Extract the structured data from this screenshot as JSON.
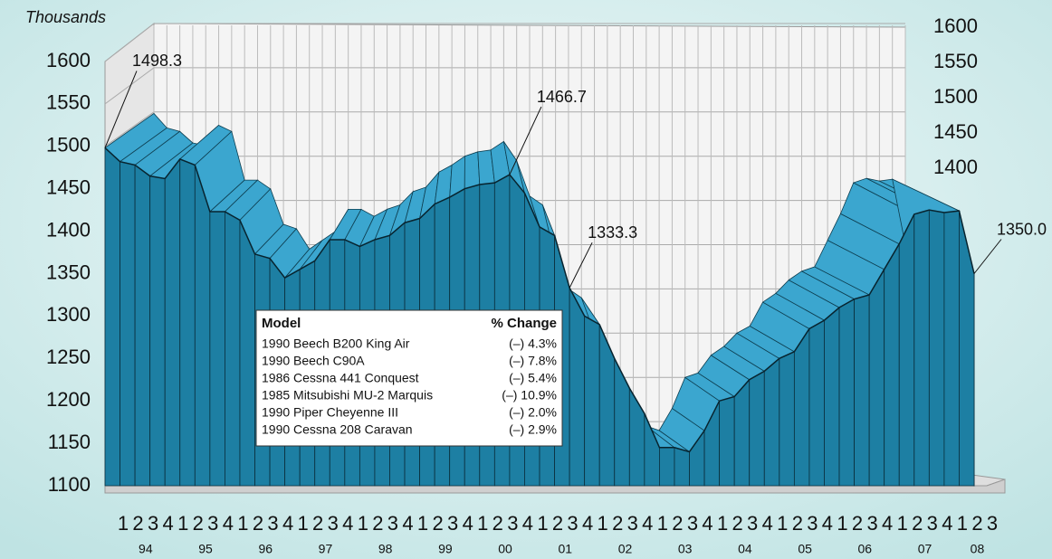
{
  "chart_data": {
    "type": "area3d",
    "y_label": "Thousands",
    "categories": [
      "1",
      "2",
      "3",
      "4",
      "1",
      "2",
      "3",
      "4",
      "1",
      "2",
      "3",
      "4",
      "1",
      "2",
      "3",
      "4",
      "1",
      "2",
      "3",
      "4",
      "1",
      "2",
      "3",
      "4",
      "1",
      "2",
      "3",
      "4",
      "1",
      "2",
      "3",
      "4",
      "1",
      "2",
      "3",
      "4",
      "1",
      "2",
      "3",
      "4",
      "1",
      "2",
      "3",
      "4",
      "1",
      "2",
      "3",
      "4",
      "1",
      "2",
      "3",
      "4",
      "1",
      "2",
      "3",
      "4",
      "1",
      "2",
      "3"
    ],
    "groups": [
      "94",
      "95",
      "96",
      "97",
      "98",
      "99",
      "00",
      "01",
      "02",
      "03",
      "04",
      "05",
      "06",
      "07",
      "08"
    ],
    "values": [
      1498.3,
      1482,
      1478,
      1465,
      1462,
      1485,
      1478,
      1423,
      1423,
      1413,
      1373,
      1368,
      1345,
      1355,
      1365,
      1390,
      1390,
      1382,
      1390,
      1395,
      1410,
      1415,
      1432,
      1440,
      1450,
      1455,
      1457,
      1466.7,
      1445,
      1405,
      1395,
      1333.3,
      1300,
      1290,
      1250,
      1215,
      1185,
      1145,
      1145,
      1140,
      1165,
      1200,
      1205,
      1225,
      1235,
      1250,
      1258,
      1285,
      1295,
      1310,
      1320,
      1325,
      1355,
      1385,
      1420,
      1425,
      1422,
      1424,
      1350
    ],
    "value_labels": [
      "1498.3",
      null,
      null,
      null,
      null,
      null,
      null,
      null,
      null,
      null,
      null,
      null,
      null,
      null,
      null,
      null,
      null,
      null,
      null,
      null,
      null,
      null,
      null,
      null,
      null,
      null,
      null,
      "1466.7",
      null,
      null,
      null,
      "1333.3",
      null,
      null,
      null,
      null,
      null,
      null,
      null,
      null,
      null,
      null,
      null,
      null,
      null,
      null,
      null,
      null,
      null,
      null,
      null,
      null,
      null,
      null,
      null,
      null,
      null,
      null,
      "1350.0"
    ],
    "value_label_colors": [
      null,
      null,
      null,
      null,
      null,
      null,
      null,
      null,
      null,
      null,
      null,
      null,
      null,
      null,
      null,
      null,
      null,
      null,
      null,
      null,
      null,
      null,
      null,
      null,
      null,
      null,
      null,
      null,
      null,
      null,
      null,
      "#e8202a",
      null,
      null,
      null,
      null,
      null,
      null,
      null,
      null,
      null,
      null,
      null,
      null,
      null,
      null,
      null,
      null,
      null,
      null,
      null,
      null,
      null,
      null,
      null,
      null,
      null,
      null,
      null
    ],
    "color": "#1d7fa3",
    "top_color": "#3ba6cf",
    "ylim": [
      1100,
      1600
    ],
    "yticks": [
      1100,
      1150,
      1200,
      1250,
      1300,
      1350,
      1400,
      1450,
      1500,
      1550,
      1600
    ],
    "y2lim": [
      1100,
      1600
    ],
    "y2ticks": [
      1400,
      1450,
      1500,
      1550,
      1600
    ],
    "grid": true,
    "table": {
      "columns": [
        "Model",
        "% Change"
      ],
      "rows": [
        [
          "1990 Beech B200 King Air",
          "(–) 4.3%"
        ],
        [
          "1990 Beech C90A",
          "(–) 7.8%"
        ],
        [
          "1986 Cessna 441 Conquest",
          "(–) 5.4%"
        ],
        [
          "1985 Mitsubishi MU-2 Marquis",
          "(–) 10.9%"
        ],
        [
          "1990 Piper Cheyenne III",
          "(–) 2.0%"
        ],
        [
          "1990 Cessna 208 Caravan",
          "(–) 2.9%"
        ]
      ]
    }
  }
}
